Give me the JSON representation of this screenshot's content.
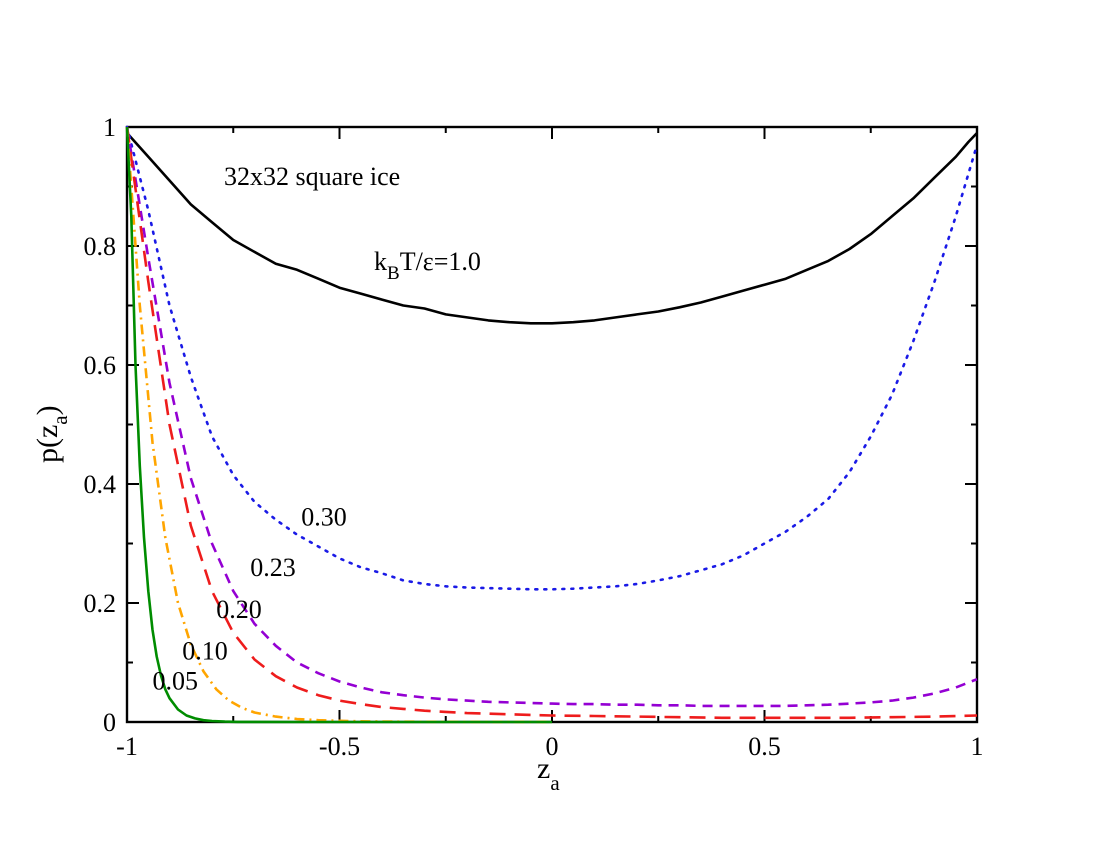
{
  "chart_data": {
    "type": "line",
    "title": "",
    "xlabel": "z",
    "xlabel_sub": "a",
    "ylabel_prefix": "p(z",
    "ylabel_sub": "a",
    "ylabel_suffix": ")",
    "xlim": [
      -1,
      1
    ],
    "ylim": [
      0,
      1
    ],
    "xticks": [
      -1,
      -0.5,
      0,
      0.5,
      1
    ],
    "xtick_labels": [
      "-1",
      "-0.5",
      "0",
      "0.5",
      "1"
    ],
    "yticks": [
      0,
      0.2,
      0.4,
      0.6,
      0.8,
      1
    ],
    "ytick_labels": [
      "0",
      "0.2",
      "0.4",
      "0.6",
      "0.8",
      "1"
    ],
    "grid": false,
    "legend": "none",
    "annotation_text": "32x32 square ice",
    "temperature_label": {
      "k": "k",
      "sub": "B",
      "rest": "T/ε=1.0"
    },
    "series": [
      {
        "name": "1.0",
        "label": "",
        "color": "#000000",
        "style": "solid",
        "width": 2.6,
        "x": [
          -1.0,
          -0.95,
          -0.9,
          -0.85,
          -0.8,
          -0.75,
          -0.7,
          -0.65,
          -0.6,
          -0.55,
          -0.5,
          -0.45,
          -0.4,
          -0.35,
          -0.3,
          -0.25,
          -0.2,
          -0.15,
          -0.1,
          -0.05,
          0.0,
          0.05,
          0.1,
          0.15,
          0.2,
          0.25,
          0.3,
          0.35,
          0.4,
          0.45,
          0.5,
          0.55,
          0.6,
          0.65,
          0.7,
          0.75,
          0.8,
          0.85,
          0.9,
          0.95,
          0.98,
          1.0
        ],
        "y": [
          0.99,
          0.95,
          0.91,
          0.87,
          0.84,
          0.81,
          0.79,
          0.77,
          0.76,
          0.745,
          0.73,
          0.72,
          0.71,
          0.7,
          0.695,
          0.685,
          0.68,
          0.675,
          0.672,
          0.67,
          0.67,
          0.672,
          0.675,
          0.68,
          0.685,
          0.69,
          0.697,
          0.705,
          0.715,
          0.725,
          0.735,
          0.745,
          0.76,
          0.775,
          0.795,
          0.82,
          0.85,
          0.88,
          0.915,
          0.95,
          0.975,
          0.99
        ]
      },
      {
        "name": "0.30",
        "label": "0.30",
        "color": "#1a1ae6",
        "style": "dotted",
        "width": 2.6,
        "x": [
          -1.0,
          -0.95,
          -0.9,
          -0.85,
          -0.8,
          -0.75,
          -0.7,
          -0.65,
          -0.6,
          -0.55,
          -0.5,
          -0.45,
          -0.4,
          -0.35,
          -0.3,
          -0.25,
          -0.2,
          -0.15,
          -0.1,
          -0.05,
          0.0,
          0.05,
          0.1,
          0.15,
          0.2,
          0.25,
          0.3,
          0.35,
          0.4,
          0.45,
          0.5,
          0.55,
          0.6,
          0.65,
          0.7,
          0.75,
          0.8,
          0.85,
          0.9,
          0.95,
          1.0
        ],
        "y": [
          1.0,
          0.86,
          0.7,
          0.58,
          0.48,
          0.415,
          0.37,
          0.34,
          0.315,
          0.295,
          0.275,
          0.26,
          0.25,
          0.238,
          0.232,
          0.228,
          0.226,
          0.225,
          0.224,
          0.223,
          0.223,
          0.224,
          0.226,
          0.228,
          0.232,
          0.238,
          0.245,
          0.255,
          0.265,
          0.28,
          0.3,
          0.32,
          0.345,
          0.375,
          0.42,
          0.48,
          0.55,
          0.64,
          0.74,
          0.85,
          0.97
        ]
      },
      {
        "name": "0.23",
        "label": "0.23",
        "color": "#9400d3",
        "style": "dashed",
        "width": 2.6,
        "x": [
          -1.0,
          -0.95,
          -0.9,
          -0.85,
          -0.8,
          -0.75,
          -0.7,
          -0.65,
          -0.6,
          -0.55,
          -0.5,
          -0.45,
          -0.4,
          -0.35,
          -0.3,
          -0.25,
          -0.2,
          -0.15,
          -0.1,
          -0.05,
          0.0,
          0.05,
          0.1,
          0.15,
          0.2,
          0.25,
          0.3,
          0.35,
          0.4,
          0.45,
          0.5,
          0.55,
          0.6,
          0.65,
          0.7,
          0.75,
          0.8,
          0.85,
          0.9,
          0.95,
          1.0
        ],
        "y": [
          1.0,
          0.78,
          0.57,
          0.41,
          0.3,
          0.22,
          0.165,
          0.128,
          0.1,
          0.082,
          0.068,
          0.058,
          0.05,
          0.045,
          0.041,
          0.038,
          0.036,
          0.034,
          0.033,
          0.032,
          0.031,
          0.03,
          0.03,
          0.029,
          0.029,
          0.028,
          0.028,
          0.027,
          0.027,
          0.027,
          0.027,
          0.027,
          0.028,
          0.029,
          0.031,
          0.033,
          0.036,
          0.041,
          0.048,
          0.058,
          0.072
        ]
      },
      {
        "name": "0.20",
        "label": "0.20",
        "color": "#ee1c1c",
        "style": "longdash",
        "width": 2.6,
        "x": [
          -1.0,
          -0.95,
          -0.9,
          -0.85,
          -0.8,
          -0.75,
          -0.7,
          -0.65,
          -0.6,
          -0.55,
          -0.5,
          -0.45,
          -0.4,
          -0.35,
          -0.3,
          -0.25,
          -0.2,
          -0.15,
          -0.1,
          -0.05,
          0.0,
          0.1,
          0.2,
          0.3,
          0.4,
          0.5,
          0.6,
          0.7,
          0.8,
          0.9,
          1.0
        ],
        "y": [
          1.0,
          0.74,
          0.5,
          0.33,
          0.22,
          0.15,
          0.105,
          0.077,
          0.058,
          0.045,
          0.036,
          0.03,
          0.025,
          0.022,
          0.019,
          0.017,
          0.015,
          0.014,
          0.013,
          0.012,
          0.011,
          0.01,
          0.009,
          0.008,
          0.007,
          0.007,
          0.007,
          0.007,
          0.008,
          0.009,
          0.011
        ]
      },
      {
        "name": "0.10",
        "label": "0.10",
        "color": "#ffa500",
        "style": "dashdot",
        "width": 2.6,
        "x": [
          -1.0,
          -0.97,
          -0.94,
          -0.91,
          -0.88,
          -0.85,
          -0.82,
          -0.79,
          -0.76,
          -0.73,
          -0.7,
          -0.65,
          -0.6,
          -0.55,
          -0.5,
          -0.45,
          -0.4,
          -0.3,
          -0.2,
          -0.1,
          0.0
        ],
        "y": [
          1.0,
          0.7,
          0.47,
          0.31,
          0.2,
          0.13,
          0.085,
          0.055,
          0.036,
          0.024,
          0.016,
          0.009,
          0.005,
          0.003,
          0.002,
          0.0012,
          0.0008,
          0.0004,
          0.0002,
          0.0001,
          0.0
        ]
      },
      {
        "name": "0.05",
        "label": "0.05",
        "color": "#008c00",
        "style": "solid",
        "width": 2.6,
        "x": [
          -1.0,
          -0.99,
          -0.98,
          -0.97,
          -0.96,
          -0.95,
          -0.94,
          -0.93,
          -0.92,
          -0.91,
          -0.9,
          -0.88,
          -0.86,
          -0.84,
          -0.82,
          -0.8,
          -0.77,
          -0.74,
          -0.7,
          -0.6,
          -0.5,
          -0.3,
          0.0
        ],
        "y": [
          1.0,
          0.85,
          0.6,
          0.43,
          0.31,
          0.22,
          0.155,
          0.11,
          0.078,
          0.055,
          0.04,
          0.021,
          0.011,
          0.006,
          0.003,
          0.0016,
          0.0006,
          0.0002,
          0.0001,
          0.0,
          0.0,
          0.0,
          0.0
        ]
      }
    ]
  }
}
